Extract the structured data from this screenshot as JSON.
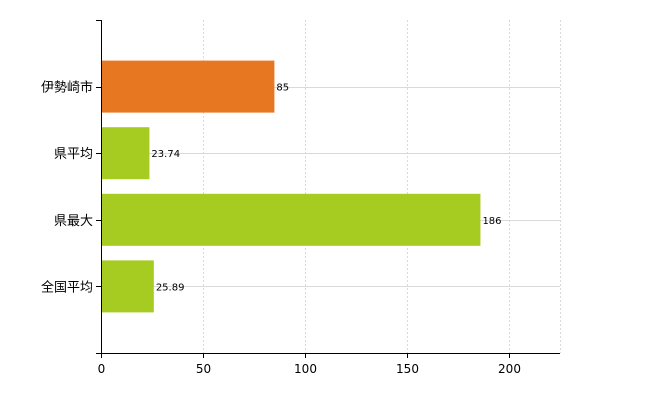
{
  "chart_data": {
    "type": "bar",
    "orientation": "horizontal",
    "categories": [
      "伊勢崎市",
      "県平均",
      "県最大",
      "全国平均"
    ],
    "values": [
      85,
      23.74,
      186,
      25.89
    ],
    "data_labels": [
      "85",
      "23.74",
      "186",
      "25.89"
    ],
    "bar_colors": [
      "#e87722",
      "#a6cc21",
      "#a6cc21",
      "#a6cc21"
    ],
    "xlim": [
      0,
      225
    ],
    "xticks": [
      0,
      50,
      100,
      150,
      200
    ],
    "grid": true,
    "grid_color": "#d9d9d9",
    "axis_color": "#000000",
    "legend": "none"
  }
}
